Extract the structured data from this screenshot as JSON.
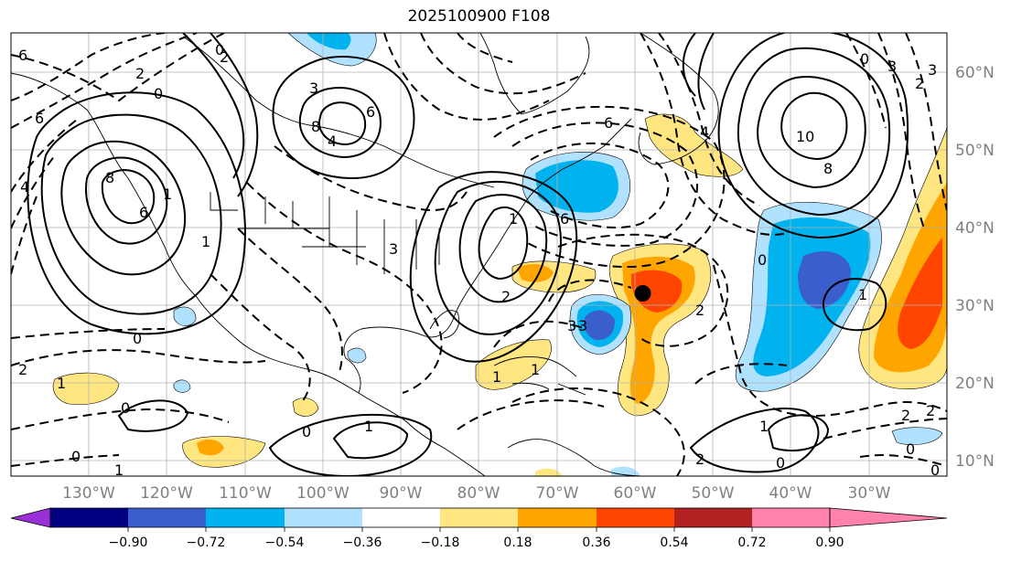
{
  "title": "2025100900 F108",
  "map": {
    "projection": "PlateCarree",
    "lon_range": [
      -142,
      -22
    ],
    "lat_range": [
      8,
      65
    ],
    "lon_labels": [
      "130°W",
      "120°W",
      "110°W",
      "100°W",
      "90°W",
      "80°W",
      "70°W",
      "60°W",
      "50°W",
      "40°W",
      "30°W"
    ],
    "lat_labels": [
      "10°N",
      "20°N",
      "30°N",
      "40°N",
      "50°N",
      "60°N"
    ],
    "grid": true,
    "marker": {
      "lon": -61,
      "lat": 31.5,
      "color": "#000000"
    }
  },
  "colorbar": {
    "orientation": "horizontal",
    "extend": "both",
    "ticks": [
      "−0.90",
      "−0.72",
      "−0.54",
      "−0.36",
      "−0.18",
      "0.18",
      "0.36",
      "0.54",
      "0.72",
      "0.90"
    ],
    "colors": [
      "#9b30d9",
      "#000080",
      "#3a5fcd",
      "#00b2ee",
      "#b0e2ff",
      "#ffffff",
      "#ffe680",
      "#ffa500",
      "#ff4500",
      "#b22222",
      "#ff82ab"
    ]
  },
  "contour_labels": [
    "6",
    "6",
    "2",
    "0",
    "1",
    "8",
    "6",
    "4",
    "8",
    "4",
    "6",
    "3",
    "6",
    "2",
    "2",
    "3",
    "1",
    "0",
    "2",
    "3",
    "6",
    "4",
    "0",
    "3",
    "2",
    "10",
    "8",
    "0",
    "1",
    "2",
    "3",
    "0",
    "1",
    "2",
    "1",
    "0",
    "2",
    "0",
    "1",
    "0",
    "1",
    "0",
    "1",
    "3",
    "1",
    "1",
    "0",
    "2",
    "0"
  ]
}
